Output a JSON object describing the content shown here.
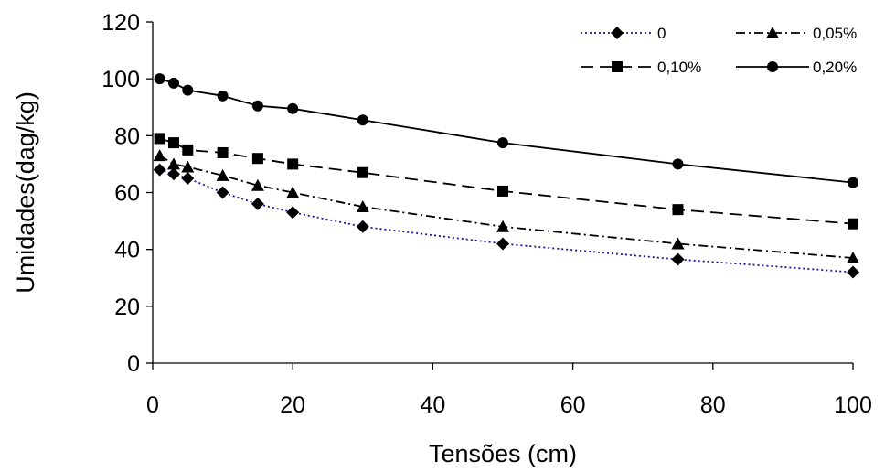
{
  "chart_data": {
    "type": "line",
    "xlabel": "Tensões (cm)",
    "ylabel": "Umidades(dag/kg)",
    "xlim": [
      0,
      100
    ],
    "ylim": [
      0,
      120
    ],
    "xticks": [
      0,
      20,
      40,
      60,
      80,
      100
    ],
    "yticks": [
      0,
      20,
      40,
      60,
      80,
      100,
      120
    ],
    "grid": false,
    "legend_position": "top-right",
    "series": [
      {
        "name": "0",
        "marker": "diamond",
        "dash": "dotted",
        "color": "#1a1aa0",
        "x": [
          1,
          3,
          5,
          10,
          15,
          20,
          30,
          50,
          75,
          100
        ],
        "y": [
          68,
          66.5,
          65,
          60,
          56,
          53,
          48,
          42,
          36.5,
          32
        ]
      },
      {
        "name": "0,05%",
        "marker": "triangle",
        "dash": "dashdot",
        "color": "#000000",
        "x": [
          1,
          3,
          5,
          10,
          15,
          20,
          30,
          50,
          75,
          100
        ],
        "y": [
          73,
          70,
          69,
          66,
          62.5,
          60,
          55,
          48,
          42,
          37
        ]
      },
      {
        "name": "0,10%",
        "marker": "square",
        "dash": "dashed",
        "color": "#000000",
        "x": [
          1,
          3,
          5,
          10,
          15,
          20,
          30,
          50,
          75,
          100
        ],
        "y": [
          79,
          77.5,
          75,
          74,
          72,
          70,
          67,
          60.5,
          54,
          49
        ]
      },
      {
        "name": "0,20%",
        "marker": "circle",
        "dash": "solid",
        "color": "#000000",
        "x": [
          1,
          3,
          5,
          10,
          15,
          20,
          30,
          50,
          75,
          100
        ],
        "y": [
          100,
          98.5,
          96,
          94,
          90.5,
          89.5,
          85.5,
          77.5,
          70,
          63.5
        ]
      }
    ]
  }
}
